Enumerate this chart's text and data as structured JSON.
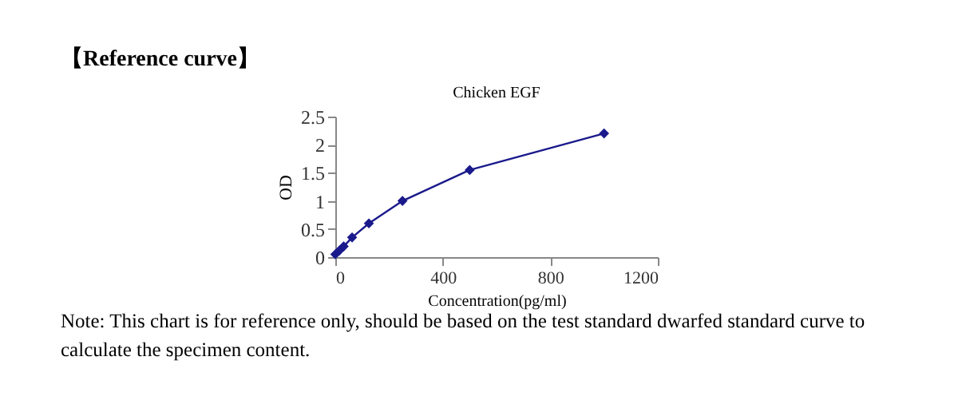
{
  "chart_data": {
    "type": "line",
    "title": "Chicken EGF",
    "xlabel": "Concentration(pg/ml)",
    "ylabel": "OD",
    "x": [
      0,
      15.6,
      31.25,
      62.5,
      125,
      250,
      500,
      1000
    ],
    "series": [
      {
        "color": "#1a1a8c",
        "values": [
          0.05,
          0.12,
          0.19,
          0.35,
          0.6,
          1.0,
          1.55,
          2.2
        ]
      }
    ],
    "xlim": [
      0,
      1200
    ],
    "xticks": [
      0,
      400,
      800,
      1200
    ],
    "ylim": [
      0,
      2.5
    ],
    "yticks": [
      0,
      0.5,
      1,
      1.5,
      2,
      2.5
    ],
    "grid": false,
    "legend": false,
    "marker": "diamond",
    "line_style": "solid",
    "annotations": [
      "【Reference curve】",
      "Note: This chart is for reference only, should be based on the test standard dwarfed standard curve to calculate the specimen content."
    ]
  }
}
